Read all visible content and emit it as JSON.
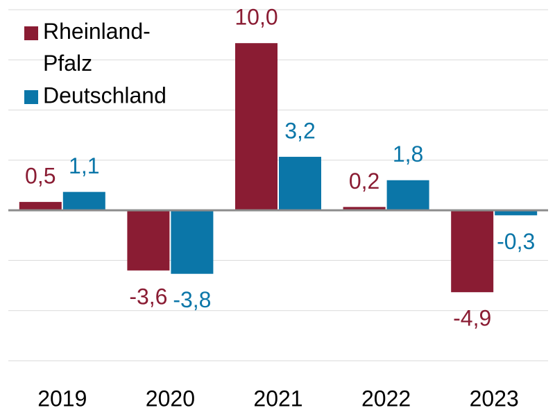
{
  "chart_data": {
    "type": "bar",
    "categories": [
      "2019",
      "2020",
      "2021",
      "2022",
      "2023"
    ],
    "series": [
      {
        "name": "Rheinland-Pfalz",
        "color": "#8a1c33",
        "values": [
          0.5,
          -3.6,
          10.0,
          0.2,
          -4.9
        ],
        "value_labels": [
          "0,5",
          "-3,6",
          "10,0",
          "0,2",
          "-4,9"
        ]
      },
      {
        "name": "Deutschland",
        "color": "#0b76a8",
        "values": [
          1.1,
          -3.8,
          3.2,
          1.8,
          -0.3
        ],
        "value_labels": [
          "1,1",
          "-3,8",
          "3,2",
          "1,8",
          "-0,3"
        ]
      }
    ],
    "ylim": [
      -9,
      12
    ],
    "yticks": [
      -9,
      -6,
      -3,
      0,
      3,
      6,
      9,
      12
    ],
    "grid": true,
    "legend": "upper left"
  }
}
